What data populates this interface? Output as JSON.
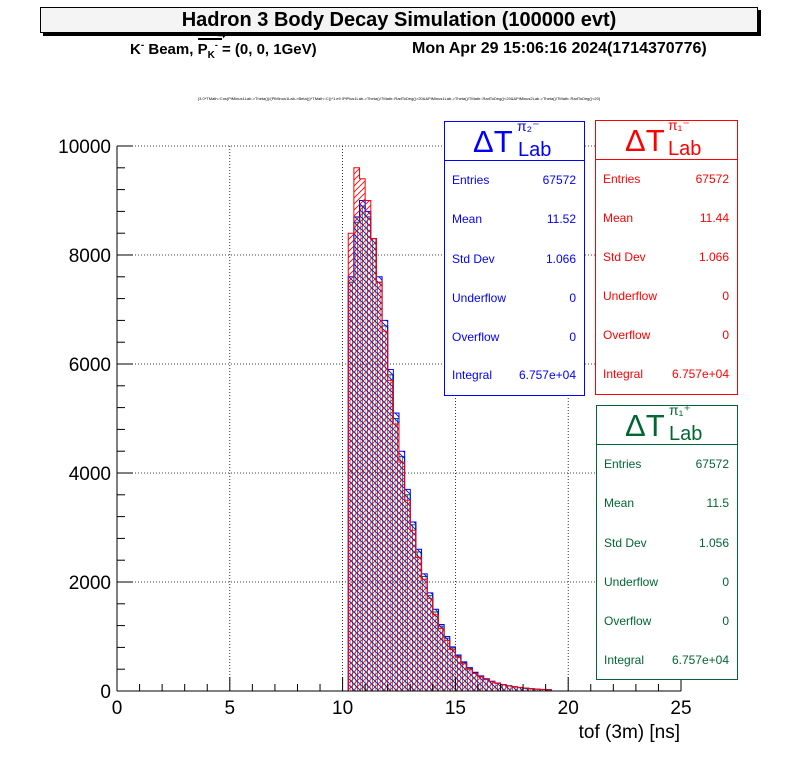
{
  "title": "Hadron 3 Body Decay Simulation (100000 evt)",
  "subtitle": {
    "beam_prefix": "K",
    "beam_prefix_sup": "-",
    "beam_word": "Beam,",
    "p_symbol": "P",
    "p_sub": "K",
    "p_sub_sup": "-",
    "beam_value": "= (0, 0, 1GeV)",
    "datetime": "Mon Apr 29 15:06:16 2024(1714370776)"
  },
  "selection": "(3.0*TMath::Cos(PiMinus1Lab->Theta())/(PiMinus1Lab->Beta())*TMath::C()*1.e9 /PiPlus1Lab->Theta()/TMath::RadToDeg()>20&&PiMinus1Lab->Theta()/TMath::RadToDeg()<20&&PiMinus2Lab->Theta()/TMath::RadToDeg()<20)",
  "colors": {
    "pim2": "#0000ff",
    "pim1": "#ff0000",
    "pip1": "#006633"
  },
  "stat_boxes": [
    {
      "id": "pim2",
      "color": "#0000ff",
      "delta": "ΔT",
      "sub": "Lab",
      "sup": "π₂⁻",
      "rows": [
        {
          "label": "Entries",
          "value": "67572"
        },
        {
          "label": "Mean",
          "value": "11.52"
        },
        {
          "label": "Std Dev",
          "value": "1.066"
        },
        {
          "label": "Underflow",
          "value": "0"
        },
        {
          "label": "Overflow",
          "value": "0"
        },
        {
          "label": "Integral",
          "value": "6.757e+04"
        }
      ]
    },
    {
      "id": "pim1",
      "color": "#ff0000",
      "delta": "ΔT",
      "sub": "Lab",
      "sup": "π₁⁻",
      "rows": [
        {
          "label": "Entries",
          "value": "67572"
        },
        {
          "label": "Mean",
          "value": "11.44"
        },
        {
          "label": "Std Dev",
          "value": "1.066"
        },
        {
          "label": "Underflow",
          "value": "0"
        },
        {
          "label": "Overflow",
          "value": "0"
        },
        {
          "label": "Integral",
          "value": "6.757e+04"
        }
      ]
    },
    {
      "id": "pip1",
      "color": "#006633",
      "delta": "ΔT",
      "sub": "Lab",
      "sup": "π₁⁺",
      "rows": [
        {
          "label": "Entries",
          "value": "67572"
        },
        {
          "label": "Mean",
          "value": "11.5"
        },
        {
          "label": "Std Dev",
          "value": "1.056"
        },
        {
          "label": "Underflow",
          "value": "0"
        },
        {
          "label": "Overflow",
          "value": "0"
        },
        {
          "label": "Integral",
          "value": "6.757e+04"
        }
      ]
    }
  ],
  "chart_data": {
    "type": "histogram",
    "xlabel": "tof (3m) [ns]",
    "ylabel": "",
    "xlim": [
      0,
      25
    ],
    "ylim": [
      0,
      10000
    ],
    "x_ticks": [
      0,
      5,
      10,
      15,
      20,
      25
    ],
    "y_ticks": [
      0,
      2000,
      4000,
      6000,
      8000,
      10000
    ],
    "grid": true,
    "bin_width": 0.25,
    "bin_start": 10.25,
    "series": [
      {
        "id": "pim1",
        "color": "#ff0000",
        "values": [
          8400,
          9600,
          9400,
          9000,
          8300,
          7500,
          6600,
          5700,
          4900,
          4200,
          3500,
          2950,
          2450,
          2050,
          1700,
          1400,
          1150,
          930,
          760,
          620,
          500,
          400,
          320,
          260,
          210,
          170,
          140,
          115,
          95,
          80,
          66,
          54,
          44,
          36,
          29,
          24
        ]
      },
      {
        "id": "pim2",
        "color": "#0000ff",
        "values": [
          7600,
          8700,
          9000,
          8800,
          8300,
          7600,
          6800,
          5900,
          5100,
          4400,
          3700,
          3100,
          2600,
          2150,
          1800,
          1500,
          1220,
          1000,
          810,
          660,
          535,
          430,
          345,
          278,
          224,
          180,
          146,
          118,
          96,
          78,
          64,
          52,
          42,
          34,
          28,
          23
        ]
      },
      {
        "id": "pip1",
        "color": "#006633",
        "values": [
          7500,
          8600,
          8900,
          8700,
          8300,
          7500,
          6700,
          5800,
          5000,
          4300,
          3600,
          3050,
          2550,
          2100,
          1750,
          1450,
          1190,
          970,
          790,
          640,
          520,
          420,
          338,
          272,
          219,
          176,
          142,
          115,
          93,
          76,
          62,
          50,
          41,
          33,
          27,
          22
        ]
      }
    ]
  }
}
